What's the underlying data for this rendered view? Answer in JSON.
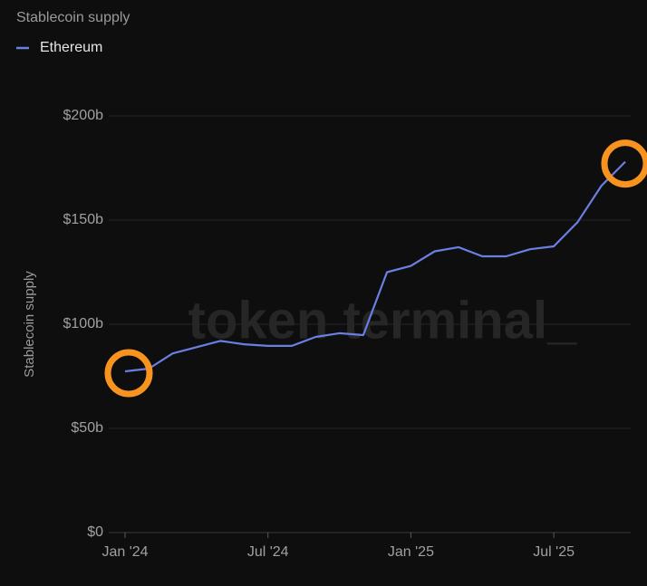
{
  "chart_data": {
    "type": "line",
    "title": "Stablecoin supply",
    "y_label": "Stablecoin supply",
    "watermark": "token terminal_",
    "x": [
      "2024-01",
      "2024-02",
      "2024-03",
      "2024-04",
      "2024-05",
      "2024-06",
      "2024-07",
      "2024-08",
      "2024-09",
      "2024-10",
      "2024-11",
      "2024-12",
      "2025-01",
      "2025-02",
      "2025-03",
      "2025-04",
      "2025-05",
      "2025-06",
      "2025-07",
      "2025-08",
      "2025-09",
      "2025-10"
    ],
    "series": [
      {
        "name": "Ethereum",
        "color": "#6b7fe3",
        "values": [
          77.4,
          78.7,
          86,
          89,
          92,
          90.4,
          89.6,
          89.6,
          93.9,
          95.7,
          94.8,
          125,
          128,
          135,
          137,
          132.6,
          132.6,
          136,
          137.4,
          149,
          166.5,
          178
        ]
      }
    ],
    "xlim": [
      "2024-01",
      "2025-10"
    ],
    "xticks": [
      {
        "value": "2024-01",
        "label": "Jan '24"
      },
      {
        "value": "2024-07",
        "label": "Jul '24"
      },
      {
        "value": "2025-01",
        "label": "Jan '25"
      },
      {
        "value": "2025-07",
        "label": "Jul '25"
      }
    ],
    "ylim": [
      0,
      200
    ],
    "yticks": [
      {
        "value": 0,
        "label": "$0"
      },
      {
        "value": 50,
        "label": "$50b"
      },
      {
        "value": 100,
        "label": "$100b"
      },
      {
        "value": 150,
        "label": "$150b"
      },
      {
        "value": 200,
        "label": "$200b"
      }
    ],
    "grid": true,
    "highlight_color": "#f7931e"
  }
}
